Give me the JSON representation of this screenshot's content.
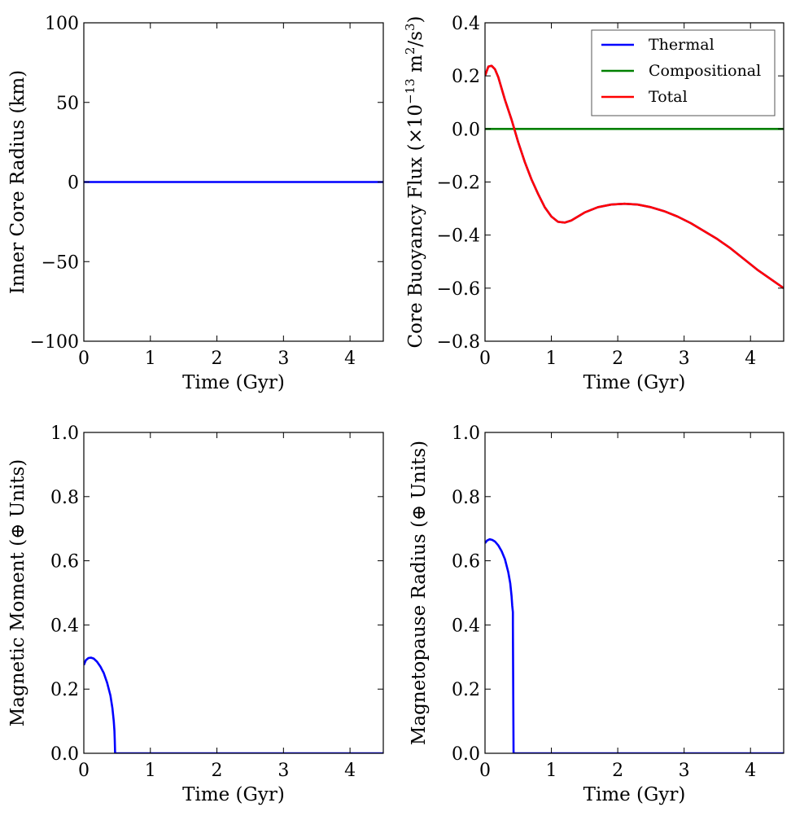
{
  "chart_data": [
    {
      "type": "line",
      "xlabel": "Time (Gyr)",
      "ylabel": "Inner Core Radius (km)",
      "xlim": [
        0,
        4.5
      ],
      "ylim": [
        -100,
        100
      ],
      "xticks": [
        "0",
        "1",
        "2",
        "3",
        "4"
      ],
      "xtick_values": [
        0,
        1,
        2,
        3,
        4
      ],
      "yticks": [
        "100",
        "50",
        "0",
        "−50",
        "−100"
      ],
      "ytick_values": [
        100,
        50,
        0,
        -50,
        -100
      ],
      "series": [
        {
          "color": "#0000ff",
          "x": [
            0,
            4.5
          ],
          "y": [
            0,
            0
          ]
        }
      ]
    },
    {
      "type": "line",
      "xlabel": "Time (Gyr)",
      "ylabel": "Core Buoyancy Flux (×10⁻¹³ m²/s³)",
      "ylabel_parts": {
        "main": "Core Buoyancy Flux (×10",
        "exp1": "−13",
        "mid": " m",
        "exp2": "2",
        "slash": "/s",
        "exp3": "3",
        "end": ")"
      },
      "xlim": [
        0,
        4.5
      ],
      "ylim": [
        -0.8,
        0.4
      ],
      "xticks": [
        "0",
        "1",
        "2",
        "3",
        "4"
      ],
      "xtick_values": [
        0,
        1,
        2,
        3,
        4
      ],
      "yticks": [
        "0.4",
        "0.2",
        "0.0",
        "−0.2",
        "−0.4",
        "−0.6",
        "−0.8"
      ],
      "ytick_values": [
        0.4,
        0.2,
        0.0,
        -0.2,
        -0.4,
        -0.6,
        -0.8
      ],
      "legend": {
        "placement": "top-right",
        "entries": [
          "Thermal",
          "Compositional",
          "Total"
        ]
      },
      "series": [
        {
          "name": "Thermal",
          "color": "#0000ff",
          "x": [
            0,
            0.05,
            0.1,
            0.15,
            0.2,
            0.3,
            0.4,
            0.5,
            0.6,
            0.7,
            0.8,
            0.9,
            1.0,
            1.1,
            1.2,
            1.3,
            1.5,
            1.7,
            1.9,
            2.1,
            2.3,
            2.5,
            2.7,
            2.9,
            3.1,
            3.3,
            3.5,
            3.7,
            3.9,
            4.1,
            4.3,
            4.5
          ],
          "y": [
            0.2,
            0.235,
            0.238,
            0.225,
            0.195,
            0.11,
            0.035,
            -0.05,
            -0.125,
            -0.19,
            -0.245,
            -0.295,
            -0.33,
            -0.35,
            -0.353,
            -0.345,
            -0.315,
            -0.295,
            -0.285,
            -0.282,
            -0.285,
            -0.295,
            -0.31,
            -0.33,
            -0.355,
            -0.385,
            -0.415,
            -0.45,
            -0.49,
            -0.53,
            -0.565,
            -0.6
          ]
        },
        {
          "name": "Compositional",
          "color": "#008000",
          "x": [
            0,
            4.5
          ],
          "y": [
            0,
            0
          ]
        },
        {
          "name": "Total",
          "color": "#ff0000",
          "x": [
            0,
            0.05,
            0.1,
            0.15,
            0.2,
            0.3,
            0.4,
            0.5,
            0.6,
            0.7,
            0.8,
            0.9,
            1.0,
            1.1,
            1.2,
            1.3,
            1.5,
            1.7,
            1.9,
            2.1,
            2.3,
            2.5,
            2.7,
            2.9,
            3.1,
            3.3,
            3.5,
            3.7,
            3.9,
            4.1,
            4.3,
            4.5
          ],
          "y": [
            0.2,
            0.235,
            0.238,
            0.225,
            0.195,
            0.11,
            0.035,
            -0.05,
            -0.125,
            -0.19,
            -0.245,
            -0.295,
            -0.33,
            -0.35,
            -0.353,
            -0.345,
            -0.315,
            -0.295,
            -0.285,
            -0.282,
            -0.285,
            -0.295,
            -0.31,
            -0.33,
            -0.355,
            -0.385,
            -0.415,
            -0.45,
            -0.49,
            -0.53,
            -0.565,
            -0.6
          ]
        }
      ]
    },
    {
      "type": "line",
      "xlabel": "Time (Gyr)",
      "ylabel": "Magnetic Moment (⊕ Units)",
      "xlim": [
        0,
        4.5
      ],
      "ylim": [
        0,
        1
      ],
      "xticks": [
        "0",
        "1",
        "2",
        "3",
        "4"
      ],
      "xtick_values": [
        0,
        1,
        2,
        3,
        4
      ],
      "yticks": [
        "1.0",
        "0.8",
        "0.6",
        "0.4",
        "0.2",
        "0.0"
      ],
      "ytick_values": [
        1.0,
        0.8,
        0.6,
        0.4,
        0.2,
        0.0
      ],
      "series": [
        {
          "color": "#0000ff",
          "x": [
            0,
            0.03,
            0.07,
            0.11,
            0.15,
            0.2,
            0.25,
            0.3,
            0.35,
            0.4,
            0.43,
            0.45,
            0.46,
            0.465,
            0.47,
            4.5
          ],
          "y": [
            0.275,
            0.29,
            0.297,
            0.298,
            0.295,
            0.285,
            0.27,
            0.25,
            0.22,
            0.18,
            0.14,
            0.1,
            0.07,
            0.04,
            0.0,
            0.0
          ]
        }
      ]
    },
    {
      "type": "line",
      "xlabel": "Time (Gyr)",
      "ylabel": "Magnetopause Radius (⊕ Units)",
      "xlim": [
        0,
        4.5
      ],
      "ylim": [
        0,
        1
      ],
      "xticks": [
        "0",
        "1",
        "2",
        "3",
        "4"
      ],
      "xtick_values": [
        0,
        1,
        2,
        3,
        4
      ],
      "yticks": [
        "1.0",
        "0.8",
        "0.6",
        "0.4",
        "0.2",
        "0.0"
      ],
      "ytick_values": [
        1.0,
        0.8,
        0.6,
        0.4,
        0.2,
        0.0
      ],
      "series": [
        {
          "color": "#0000ff",
          "x": [
            0,
            0.03,
            0.07,
            0.11,
            0.15,
            0.2,
            0.25,
            0.3,
            0.35,
            0.38,
            0.4,
            0.41,
            0.42,
            0.42,
            0.43,
            0.435,
            4.5
          ],
          "y": [
            0.655,
            0.663,
            0.667,
            0.665,
            0.66,
            0.648,
            0.63,
            0.605,
            0.565,
            0.53,
            0.49,
            0.46,
            0.44,
            0.4,
            0.0,
            0.0,
            0.0
          ]
        }
      ]
    }
  ]
}
